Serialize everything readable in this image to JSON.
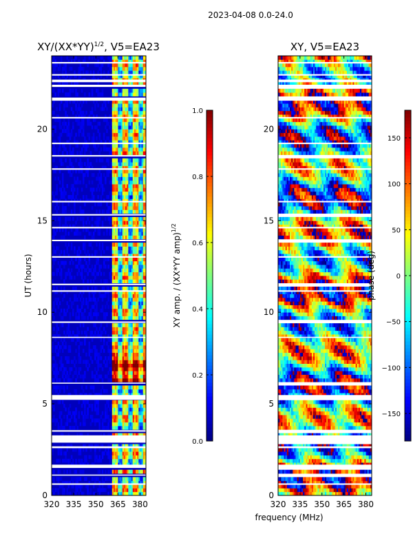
{
  "figure_title": "2023-04-08 0.0-24.0",
  "colors": {
    "jet_stops": [
      "#00007f",
      "#0000ff",
      "#007fff",
      "#00ffff",
      "#7fff7f",
      "#ffff00",
      "#ff7f00",
      "#ff0000",
      "#7f0000"
    ],
    "gap": "#ffffff"
  },
  "chart_data": [
    {
      "type": "heatmap",
      "title": "XY/(XX*YY)^{1/2}, V5=EA23",
      "title_main": "XY/(XX*YY)",
      "title_sup": "1/2",
      "title_tail": ", V5=EA23",
      "xlabel": "",
      "ylabel": "UT (hours)",
      "xlim": [
        320,
        384
      ],
      "ylim": [
        0,
        24
      ],
      "xticks": [
        320,
        335,
        350,
        365,
        380
      ],
      "yticks": [
        0,
        5,
        10,
        15,
        20
      ],
      "quantity": "normalized amplitude",
      "pattern": "low (~0.05) below ~361 MHz; high (0.3-0.8) in narrow channels 361-381 MHz, peaks near 7 UT",
      "colorbar": {
        "label": "XY amp. / (XX*YY amp)^{1/2}",
        "label_main": "XY amp. / (XX*YY amp)",
        "label_sup": "1/2",
        "range": [
          0.0,
          1.0
        ],
        "ticks": [
          "0.0",
          "0.2",
          "0.4",
          "0.6",
          "0.8",
          "1.0"
        ]
      }
    },
    {
      "type": "heatmap",
      "title": "XY, V5=EA23",
      "xlabel": "frequency (MHz)",
      "ylabel": "",
      "xlim": [
        320,
        384
      ],
      "ylim": [
        0,
        24
      ],
      "xticks": [
        320,
        335,
        350,
        365,
        380
      ],
      "yticks": [
        0,
        5,
        10,
        15,
        20
      ],
      "quantity": "phase (deg)",
      "pattern": "phase varies across full range -180 to 180 deg with horizontal banding in time",
      "colorbar": {
        "label": "phase (deg)",
        "range": [
          -180,
          180
        ],
        "ticks": [
          "-150",
          "-100",
          "-50",
          "0",
          "50",
          "100",
          "150"
        ]
      }
    }
  ],
  "time_gaps_hours": [
    [
      0.58,
      0.66
    ],
    [
      1.08,
      1.14
    ],
    [
      1.5,
      1.68
    ],
    [
      2.58,
      2.68
    ],
    [
      2.88,
      3.28
    ],
    [
      3.48,
      3.56
    ],
    [
      5.22,
      5.48
    ],
    [
      6.1,
      6.16
    ],
    [
      8.6,
      8.66
    ],
    [
      9.42,
      9.5
    ],
    [
      11.12,
      11.2
    ],
    [
      11.48,
      11.56
    ],
    [
      12.98,
      13.06
    ],
    [
      13.88,
      13.96
    ],
    [
      14.58,
      14.66
    ],
    [
      15.28,
      15.36
    ],
    [
      16.0,
      16.08
    ],
    [
      17.78,
      17.86
    ],
    [
      18.5,
      18.58
    ],
    [
      19.18,
      19.26
    ],
    [
      20.58,
      20.66
    ],
    [
      21.55,
      21.72
    ],
    [
      22.3,
      22.42
    ],
    [
      22.56,
      22.7
    ],
    [
      22.92,
      23.0
    ],
    [
      23.58,
      23.66
    ]
  ]
}
